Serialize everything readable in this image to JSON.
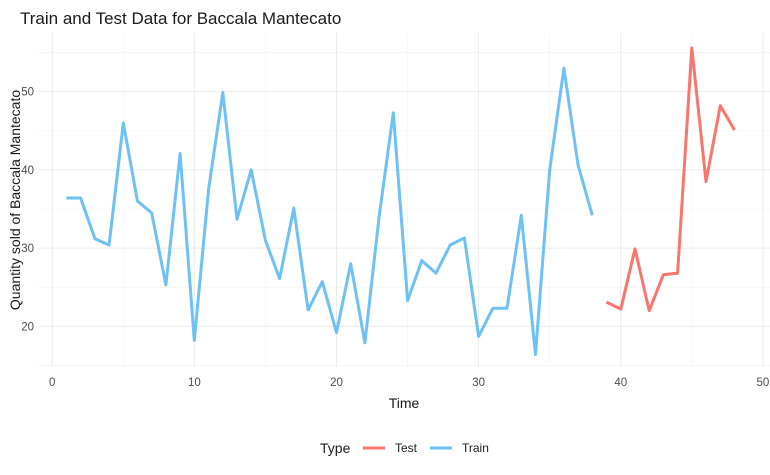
{
  "chart_data": {
    "type": "line",
    "title": "Train and Test Data for Baccala Mantecato",
    "xlabel": "Time",
    "ylabel": "Quantity sold of Baccala Mantecato",
    "xlim": [
      -1,
      50.5
    ],
    "ylim": [
      14.8,
      57.5
    ],
    "xticks": [
      0,
      10,
      20,
      30,
      40,
      50
    ],
    "yticks": [
      20,
      30,
      40,
      50
    ],
    "grid": true,
    "legend": {
      "title": "Type",
      "position": "bottom",
      "entries": [
        {
          "name": "Test",
          "color": "#F8766D"
        },
        {
          "name": "Train",
          "color": "#6EC1F5"
        }
      ]
    },
    "series": [
      {
        "name": "Train",
        "color": "#6EC1F5",
        "x": [
          1,
          2,
          3,
          4,
          5,
          6,
          7,
          8,
          9,
          10,
          11,
          12,
          13,
          14,
          15,
          16,
          17,
          18,
          19,
          20,
          21,
          22,
          23,
          24,
          25,
          26,
          27,
          28,
          29,
          30,
          31,
          32,
          33,
          34,
          35,
          36,
          37,
          38
        ],
        "y": [
          36.4,
          36.4,
          31.2,
          30.4,
          46.0,
          36.0,
          34.5,
          25.3,
          42.1,
          18.2,
          37.5,
          49.9,
          33.7,
          40.0,
          31.0,
          26.1,
          35.1,
          22.1,
          25.7,
          19.2,
          28.0,
          17.9,
          34.0,
          47.3,
          23.3,
          28.4,
          26.8,
          30.4,
          31.3,
          18.7,
          22.3,
          22.3,
          34.2,
          16.4,
          40.0,
          53.0,
          40.6,
          34.2
        ]
      },
      {
        "name": "Test",
        "color": "#F8766D",
        "x": [
          39,
          40,
          41,
          42,
          43,
          44,
          45,
          46,
          47,
          48
        ],
        "y": [
          23.1,
          22.2,
          29.9,
          22.0,
          26.6,
          26.8,
          55.6,
          38.5,
          48.2,
          45.1
        ]
      }
    ]
  }
}
